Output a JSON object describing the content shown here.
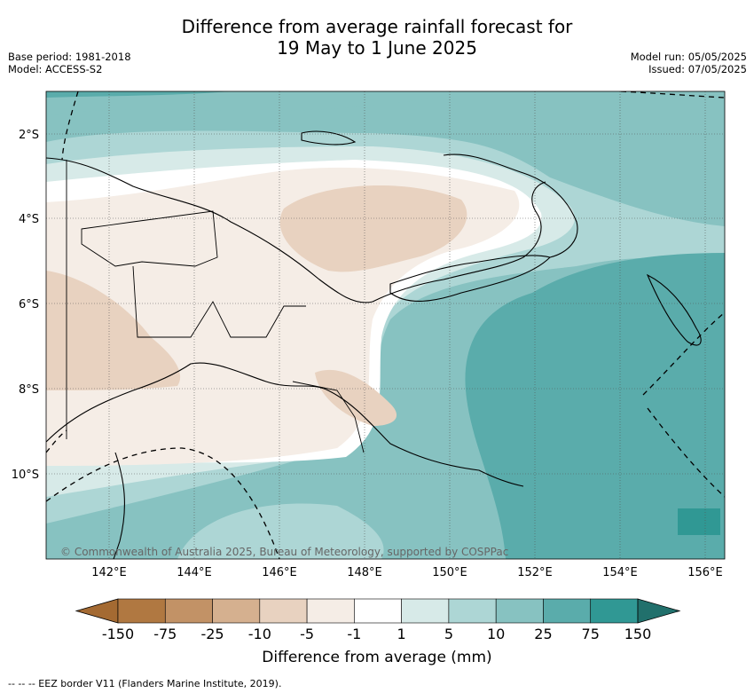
{
  "title_line1": "Difference from average rainfall forecast for",
  "title_line2": "19 May to 1 June 2025",
  "meta_left": {
    "base_period": "Base period: 1981-2018",
    "model": "Model: ACCESS-S2"
  },
  "meta_right": {
    "model_run": "Model run: 05/05/2025",
    "issued": "Issued: 07/05/2025"
  },
  "map": {
    "lat_labels": [
      "2°S",
      "4°S",
      "6°S",
      "8°S",
      "10°S"
    ],
    "lon_labels": [
      "142°E",
      "144°E",
      "146°E",
      "148°E",
      "150°E",
      "152°E",
      "154°E",
      "156°E"
    ],
    "copyright": "© Commonwealth of Australia 2025, Bureau of Meteorology, supported by COSPPac"
  },
  "colorbar": {
    "tick_labels": [
      "-150",
      "-75",
      "-25",
      "-10",
      "-5",
      "-1",
      "1",
      "5",
      "10",
      "25",
      "75",
      "150"
    ],
    "colors": [
      "#a46a32",
      "#b07841",
      "#c29266",
      "#d5b08f",
      "#e8d2c0",
      "#f5ede6",
      "#ffffff",
      "#d7eae8",
      "#add6d5",
      "#87c2c1",
      "#5aacab",
      "#309894",
      "#21706c"
    ],
    "title": "Difference from average (mm)"
  },
  "legend_footer": "--  --  -- EEZ border V11 (Flanders Marine Institute, 2019)."
}
